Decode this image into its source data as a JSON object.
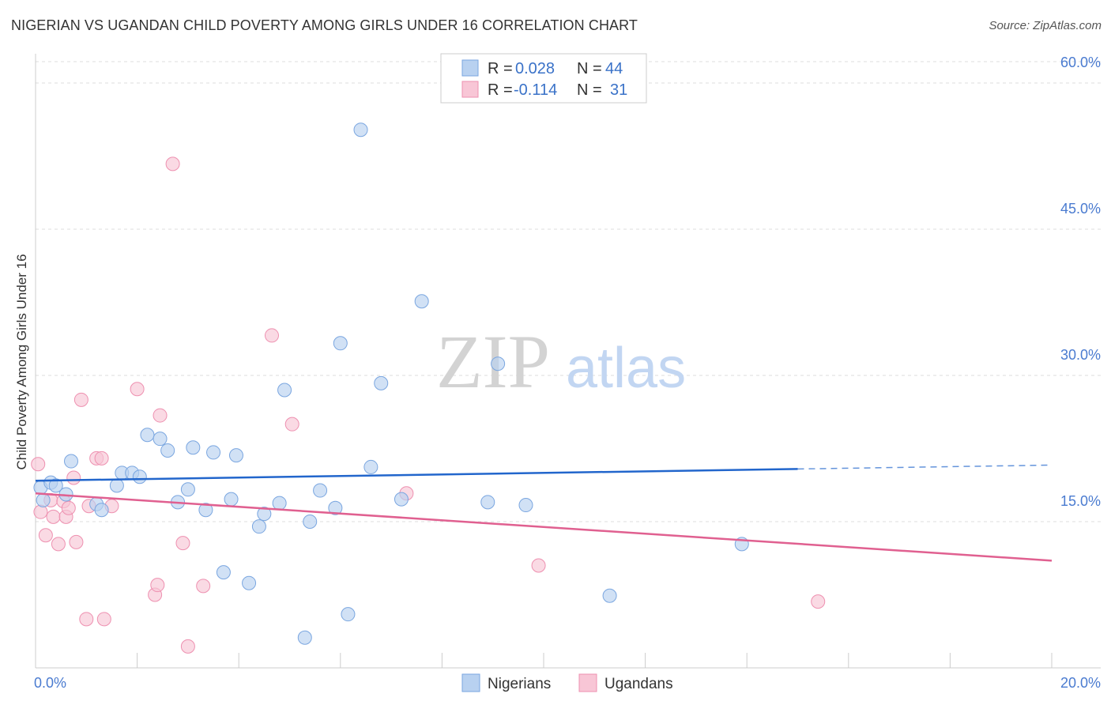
{
  "title": "NIGERIAN VS UGANDAN CHILD POVERTY AMONG GIRLS UNDER 16 CORRELATION CHART",
  "source": "Source: ZipAtlas.com",
  "colors": {
    "nigerians_fill": "#b8d1f0",
    "nigerians_stroke": "#7aa6e0",
    "nigerians_line": "#2266cc",
    "ugandans_fill": "#f8c6d6",
    "ugandans_stroke": "#ee90b0",
    "ugandans_line": "#e06090",
    "value_text": "#3a72c8",
    "watermark_zip": "#d0d0d0",
    "watermark_atlas": "#b8cef0"
  },
  "legend": {
    "row1": {
      "r_label": "R =",
      "r_value": "0.028",
      "n_label": "N =",
      "n_value": "44"
    },
    "row2": {
      "r_label": "R =",
      "r_value": "-0.114",
      "n_label": "N =",
      "n_value": "31"
    }
  },
  "watermark": {
    "zip": "ZIP",
    "atlas": "atlas"
  },
  "chart_data": {
    "type": "scatter",
    "ylabel": "Child Poverty Among Girls Under 16",
    "xlim": [
      0,
      20
    ],
    "ylim": [
      0,
      63
    ],
    "x_tick_labels": [
      "0.0%",
      "20.0%"
    ],
    "y_ticks": [
      15,
      30,
      45,
      60
    ],
    "y_tick_labels": [
      "15.0%",
      "30.0%",
      "45.0%",
      "60.0%"
    ],
    "grid": true,
    "series": [
      {
        "name": "Nigerians",
        "points": [
          [
            0.1,
            18.5
          ],
          [
            0.3,
            19.0
          ],
          [
            0.4,
            18.7
          ],
          [
            0.6,
            17.8
          ],
          [
            0.7,
            21.2
          ],
          [
            1.2,
            16.8
          ],
          [
            1.3,
            16.2
          ],
          [
            1.6,
            18.7
          ],
          [
            1.7,
            20.0
          ],
          [
            1.9,
            20.0
          ],
          [
            2.05,
            19.6
          ],
          [
            2.2,
            23.9
          ],
          [
            2.45,
            23.5
          ],
          [
            2.6,
            22.3
          ],
          [
            2.8,
            17.0
          ],
          [
            3.0,
            18.3
          ],
          [
            3.1,
            22.6
          ],
          [
            3.35,
            16.2
          ],
          [
            3.5,
            22.1
          ],
          [
            3.7,
            9.8
          ],
          [
            3.85,
            17.3
          ],
          [
            3.95,
            21.8
          ],
          [
            4.2,
            8.7
          ],
          [
            4.4,
            14.5
          ],
          [
            4.5,
            15.8
          ],
          [
            4.8,
            16.9
          ],
          [
            4.9,
            28.5
          ],
          [
            5.3,
            3.1
          ],
          [
            5.4,
            15.0
          ],
          [
            5.6,
            18.2
          ],
          [
            5.9,
            16.4
          ],
          [
            6.0,
            33.3
          ],
          [
            6.15,
            5.5
          ],
          [
            6.4,
            55.2
          ],
          [
            6.6,
            20.6
          ],
          [
            6.8,
            29.2
          ],
          [
            7.2,
            17.3
          ],
          [
            7.6,
            37.6
          ],
          [
            8.9,
            17.0
          ],
          [
            9.1,
            31.2
          ],
          [
            9.65,
            16.7
          ],
          [
            11.3,
            7.4
          ],
          [
            13.9,
            12.7
          ],
          [
            0.15,
            17.2
          ]
        ],
        "trend": {
          "x0": 0,
          "y0": 19.2,
          "x1": 20,
          "y1": 20.8,
          "solid_until_x": 15
        }
      },
      {
        "name": "Ugandans",
        "points": [
          [
            0.05,
            20.9
          ],
          [
            0.1,
            16.0
          ],
          [
            0.2,
            13.6
          ],
          [
            0.3,
            17.2
          ],
          [
            0.35,
            15.5
          ],
          [
            0.45,
            12.7
          ],
          [
            0.55,
            17.1
          ],
          [
            0.6,
            15.5
          ],
          [
            0.65,
            16.4
          ],
          [
            0.75,
            19.5
          ],
          [
            0.8,
            12.9
          ],
          [
            0.9,
            27.5
          ],
          [
            1.0,
            5.0
          ],
          [
            1.05,
            16.6
          ],
          [
            1.2,
            21.5
          ],
          [
            1.3,
            21.5
          ],
          [
            1.35,
            5.0
          ],
          [
            1.5,
            16.6
          ],
          [
            2.0,
            28.6
          ],
          [
            2.35,
            7.5
          ],
          [
            2.4,
            8.5
          ],
          [
            2.45,
            25.9
          ],
          [
            2.7,
            51.7
          ],
          [
            2.9,
            12.8
          ],
          [
            3.0,
            2.2
          ],
          [
            3.3,
            8.4
          ],
          [
            4.65,
            34.1
          ],
          [
            5.05,
            25.0
          ],
          [
            7.3,
            17.9
          ],
          [
            9.9,
            10.5
          ],
          [
            15.4,
            6.8
          ]
        ],
        "trend": {
          "x0": 0,
          "y0": 17.9,
          "x1": 20,
          "y1": 11.0
        }
      }
    ]
  },
  "bottom_legend": [
    "Nigerians",
    "Ugandans"
  ]
}
